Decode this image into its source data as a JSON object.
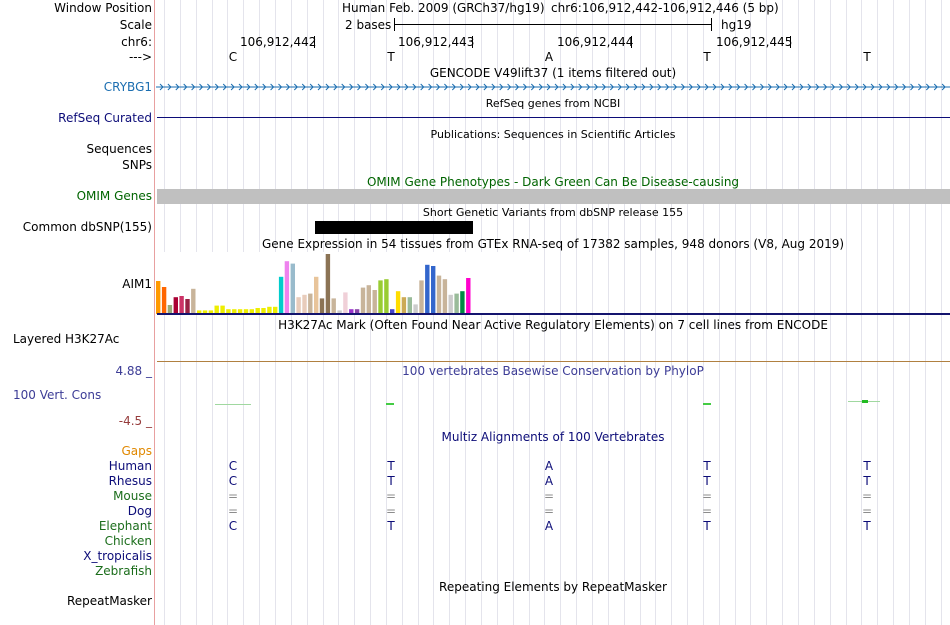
{
  "header": {
    "window_position_label": "Window Position",
    "assembly": "Human Feb. 2009 (GRCh37/hg19)",
    "position": "chr6:106,912,442-106,912,446 (5 bp)",
    "scale_label": "Scale",
    "scale_text": "2 bases",
    "scale_db": "hg19",
    "chrom_label": "chr6:",
    "coords": [
      "106,912,442",
      "106,912,443",
      "106,912,444",
      "106,912,445"
    ],
    "strand_label": "--->",
    "bases": [
      "C",
      "T",
      "A",
      "T",
      "T"
    ]
  },
  "tracks": {
    "gencode": {
      "title": "GENCODE V49lift37 (1 items filtered out)",
      "label": "CRYBG1",
      "color": "#1a6db0"
    },
    "refseq": {
      "title": "RefSeq genes from NCBI",
      "label": "RefSeq Curated",
      "color": "#0c0c78"
    },
    "publications": {
      "title": "Publications: Sequences in Scientific Articles",
      "label1": "Sequences",
      "label2": "SNPs"
    },
    "omim": {
      "title": "OMIM Gene Phenotypes - Dark Green Can Be Disease-causing",
      "label": "OMIM Genes",
      "color": "#006400"
    },
    "dbsnp": {
      "title": "Short Genetic Variants from dbSNP release 155",
      "label": "Common dbSNP(155)"
    },
    "gtex": {
      "title": "Gene Expression in 54 tissues from GTEx RNA-seq of 17382 samples, 948 donors (V8, Aug 2019)",
      "label": "AIM1",
      "bars": [
        {
          "v": 0.55,
          "c": "#ff9900"
        },
        {
          "v": 0.45,
          "c": "#ff6600"
        },
        {
          "v": 0.15,
          "c": "#99aa77"
        },
        {
          "v": 0.28,
          "c": "#aa0033"
        },
        {
          "v": 0.3,
          "c": "#cc3366"
        },
        {
          "v": 0.25,
          "c": "#992244"
        },
        {
          "v": 0.42,
          "c": "#c8b49a"
        },
        {
          "v": 0.06,
          "c": "#eeee00"
        },
        {
          "v": 0.06,
          "c": "#eeee00"
        },
        {
          "v": 0.06,
          "c": "#eeee00"
        },
        {
          "v": 0.14,
          "c": "#eeee00"
        },
        {
          "v": 0.14,
          "c": "#eeee00"
        },
        {
          "v": 0.08,
          "c": "#eeee00"
        },
        {
          "v": 0.08,
          "c": "#eeee00"
        },
        {
          "v": 0.08,
          "c": "#eeee00"
        },
        {
          "v": 0.08,
          "c": "#eeee00"
        },
        {
          "v": 0.08,
          "c": "#eeee00"
        },
        {
          "v": 0.1,
          "c": "#eeee00"
        },
        {
          "v": 0.1,
          "c": "#eeee00"
        },
        {
          "v": 0.12,
          "c": "#eeee00"
        },
        {
          "v": 0.12,
          "c": "#eeee00"
        },
        {
          "v": 0.62,
          "c": "#00cccc"
        },
        {
          "v": 0.88,
          "c": "#ee82ee"
        },
        {
          "v": 0.84,
          "c": "#99bbcc"
        },
        {
          "v": 0.28,
          "c": "#e8ccbb"
        },
        {
          "v": 0.32,
          "c": "#e8ccbb"
        },
        {
          "v": 0.34,
          "c": "#c8b49a"
        },
        {
          "v": 0.62,
          "c": "#e8c49a"
        },
        {
          "v": 0.26,
          "c": "#8b7355"
        },
        {
          "v": 1.0,
          "c": "#8b7355"
        },
        {
          "v": 0.26,
          "c": "#c8b49a"
        },
        {
          "v": 0.06,
          "c": "#cccccc"
        },
        {
          "v": 0.36,
          "c": "#f0d0d8"
        },
        {
          "v": 0.08,
          "c": "#9933cc"
        },
        {
          "v": 0.08,
          "c": "#8844aa"
        },
        {
          "v": 0.44,
          "c": "#c8b49a"
        },
        {
          "v": 0.48,
          "c": "#c8b49a"
        },
        {
          "v": 0.4,
          "c": "#c8b49a"
        },
        {
          "v": 0.56,
          "c": "#99cc33"
        },
        {
          "v": 0.58,
          "c": "#99cc33"
        },
        {
          "v": 0.08,
          "c": "#4444cc"
        },
        {
          "v": 0.38,
          "c": "#ffdd00"
        },
        {
          "v": 0.28,
          "c": "#ccaa55"
        },
        {
          "v": 0.28,
          "c": "#99bb99"
        },
        {
          "v": 0.16,
          "c": "#cccccc"
        },
        {
          "v": 0.56,
          "c": "#c8b49a"
        },
        {
          "v": 0.82,
          "c": "#3366cc"
        },
        {
          "v": 0.8,
          "c": "#3366cc"
        },
        {
          "v": 0.64,
          "c": "#c8b49a"
        },
        {
          "v": 0.58,
          "c": "#c8b49a"
        },
        {
          "v": 0.32,
          "c": "#cccccc"
        },
        {
          "v": 0.34,
          "c": "#99bb99"
        },
        {
          "v": 0.38,
          "c": "#008844"
        },
        {
          "v": 0.6,
          "c": "#ff00cc"
        }
      ]
    },
    "h3k27ac": {
      "title": "H3K27Ac Mark (Often Found Near Active Regulatory Elements) on 7 cell lines from ENCODE",
      "label": "Layered H3K27Ac",
      "line_color": "#b08040"
    },
    "phylop": {
      "title": "100 vertebrates Basewise Conservation by PhyloP",
      "label": "100 Vert. Cons",
      "max_label": "4.88 _",
      "min_label": "-4.5 _",
      "color": "#3c3c96",
      "min_color": "#963c3c"
    },
    "multiz": {
      "title": "Multiz Alignments of 100 Vertebrates",
      "gaps_label": "Gaps",
      "gaps_color": "#e08800",
      "species": [
        {
          "name": "Human",
          "color": "#0c0c78",
          "row": [
            "C",
            "T",
            "A",
            "T",
            "T"
          ]
        },
        {
          "name": "Rhesus",
          "color": "#0c0c78",
          "row": [
            "C",
            "T",
            "A",
            "T",
            "T"
          ]
        },
        {
          "name": "Mouse",
          "color": "#1b6d1b",
          "row": [
            "=",
            "=",
            "=",
            "=",
            "="
          ]
        },
        {
          "name": "Dog",
          "color": "#0c0c78",
          "row": [
            "=",
            "=",
            "=",
            "=",
            "="
          ]
        },
        {
          "name": "Elephant",
          "color": "#1b6d1b",
          "row": [
            "C",
            "T",
            "A",
            "T",
            "T"
          ]
        },
        {
          "name": "Chicken",
          "color": "#1b6d1b",
          "row": [
            "",
            "",
            "",
            "",
            ""
          ]
        },
        {
          "name": "X_tropicalis",
          "color": "#0c0c78",
          "row": [
            "",
            "",
            "",
            "",
            ""
          ]
        },
        {
          "name": "Zebrafish",
          "color": "#1b6d1b",
          "row": [
            "",
            "",
            "",
            "",
            ""
          ]
        }
      ]
    },
    "repeatmasker": {
      "title": "Repeating Elements by RepeatMasker",
      "label": "RepeatMasker"
    }
  }
}
